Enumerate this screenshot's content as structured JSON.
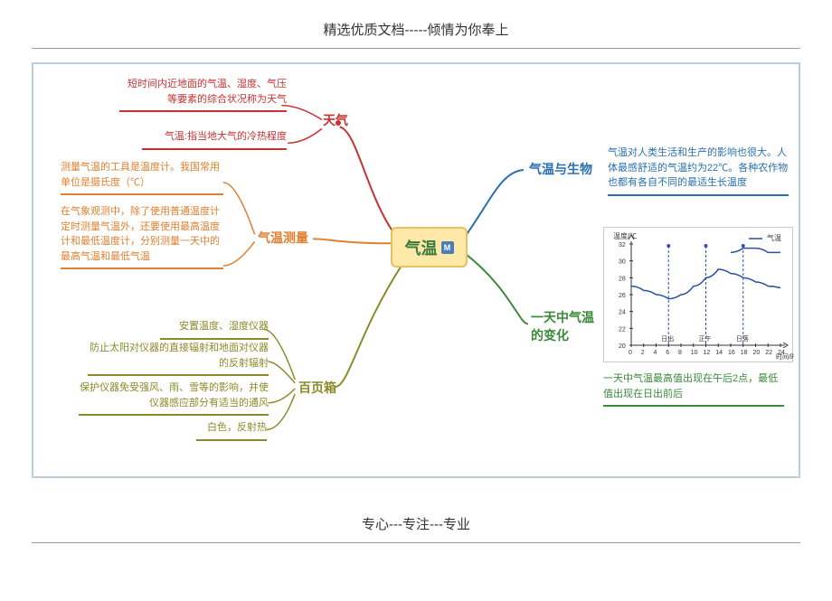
{
  "page": {
    "header": "精选优质文档-----倾情为你奉上",
    "footer": "专心---专注---专业"
  },
  "center": {
    "label": "气温",
    "badge": "M"
  },
  "branches": {
    "weather": {
      "label": "天气",
      "color": "#c83232",
      "leaves": [
        "短时间内近地面的气温、湿度、气压等要素的综合状况称为天气",
        "气温:指当地大气的冷热程度"
      ]
    },
    "measurement": {
      "label": "气温测量",
      "color": "#e08030",
      "leaves": [
        "测量气温的工具是温度计。我国常用单位是摄氏度（℃）",
        "在气象观测中，除了使用普通温度计定时测量气温外，还要使用最高温度计和最低温度计，分别测量一天中的最高气温和最低气温"
      ]
    },
    "stevenson": {
      "label": "百页箱",
      "color": "#8a8a2a",
      "leaves": [
        "安置温度、湿度仪器",
        "防止太阳对仪器的直接辐射和地面对仪器的反射辐射",
        "保护仪器免受强风、雨、雪等的影响，并使仪器感应部分有适当的通风",
        "白色，反射热"
      ]
    },
    "biology": {
      "label": "气温与生物",
      "color": "#2a70b0",
      "leaf": "气温对人类生活和生产的影响也很大。人体最感舒适的气温约为22℃。各种农作物也都有各自不同的最适生长温度"
    },
    "daily": {
      "label": "一天中气温的变化",
      "color": "#3a8a3a",
      "leaf": "一天中气温最高值出现在午后2点，最低值出现在日出前后",
      "chart": {
        "ylabel": "温度/℃",
        "series_label": "气温",
        "y_range": [
          20,
          32
        ],
        "y_step": 2,
        "x_range": [
          0,
          24
        ],
        "x_step": 2,
        "x_label": "时间/时",
        "markers": [
          "日出",
          "正午",
          "日落"
        ],
        "marker_x": [
          6,
          12,
          18
        ],
        "curve_color": "#2a50a0",
        "marker_color": "#3050c0",
        "data": [
          [
            0,
            27
          ],
          [
            2,
            26.5
          ],
          [
            4,
            26
          ],
          [
            6,
            25.5
          ],
          [
            8,
            26
          ],
          [
            10,
            27
          ],
          [
            12,
            28
          ],
          [
            14,
            29
          ],
          [
            16,
            28.5
          ],
          [
            18,
            28
          ],
          [
            20,
            27.5
          ],
          [
            22,
            27
          ],
          [
            24,
            26.8
          ]
        ],
        "top_line": [
          [
            16,
            31
          ],
          [
            18,
            31.5
          ],
          [
            20,
            31.5
          ],
          [
            22,
            31
          ],
          [
            24,
            31
          ]
        ]
      }
    }
  }
}
